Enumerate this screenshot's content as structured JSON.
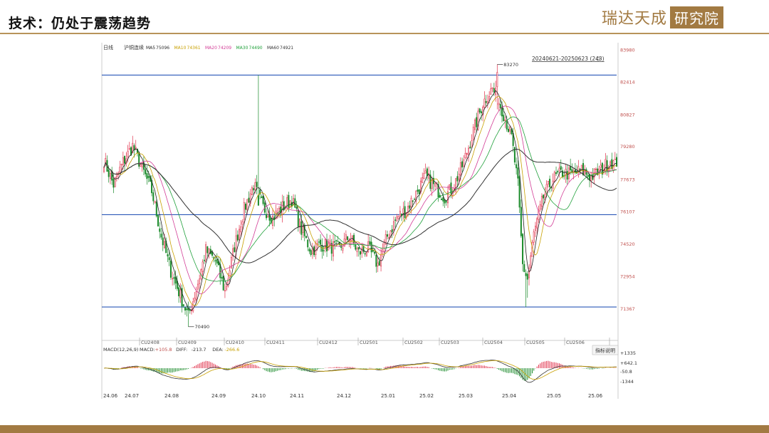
{
  "slide": {
    "title": "技术：仍处于震荡趋势",
    "brand_left": "瑞达天成",
    "brand_box": "研究院"
  },
  "colors": {
    "up": "#e0304a",
    "down": "#1a8a2a",
    "ma5": "#222222",
    "ma10": "#c8a000",
    "ma20": "#d23c96",
    "ma30": "#1fa03a",
    "ma60": "#333333",
    "hline": "#2b58b8"
  },
  "chart_data": {
    "type": "candlestick",
    "header": {
      "period": "日线",
      "symbol": "沪铜连续",
      "ma_values": [
        {
          "name": "MA5",
          "value": "75096"
        },
        {
          "name": "MA10",
          "value": "74361"
        },
        {
          "name": "MA20",
          "value": "74209"
        },
        {
          "name": "MA30",
          "value": "74490"
        },
        {
          "name": "MA60",
          "value": "74921"
        }
      ],
      "range": "20240621-20250623 (243)"
    },
    "ylim": [
      70100,
      83980
    ],
    "y_ticks": [
      83980,
      82414,
      80827,
      79280,
      77673,
      76107,
      74520,
      72954,
      71367
    ],
    "h_lines": [
      82750,
      75950,
      71450
    ],
    "annotations": [
      {
        "label": "83270",
        "value": 83270
      },
      {
        "label": "70490",
        "value": 70490
      }
    ],
    "contracts": [
      "CU2408",
      "CU2409",
      "CU2410",
      "CU2411",
      "CU2412",
      "CU2501",
      "CU2502",
      "CU2503",
      "CU2504",
      "CU2505",
      "CU2506"
    ],
    "x_labels": [
      "24.06",
      "24.07",
      "24.08",
      "24.09",
      "24.10",
      "24.11",
      "24.12",
      "25.01",
      "25.02",
      "25.03",
      "25.04",
      "25.05",
      "25.06"
    ],
    "anchors": [
      [
        0,
        78600
      ],
      [
        6,
        77400
      ],
      [
        12,
        78500
      ],
      [
        18,
        79300
      ],
      [
        24,
        78200
      ],
      [
        30,
        77100
      ],
      [
        36,
        74900
      ],
      [
        42,
        73200
      ],
      [
        48,
        72000
      ],
      [
        53,
        71000
      ],
      [
        58,
        72300
      ],
      [
        64,
        74200
      ],
      [
        70,
        73700
      ],
      [
        76,
        72200
      ],
      [
        82,
        74400
      ],
      [
        88,
        76200
      ],
      [
        94,
        77400
      ],
      [
        100,
        76300
      ],
      [
        106,
        75800
      ],
      [
        112,
        76300
      ],
      [
        118,
        76700
      ],
      [
        124,
        75200
      ],
      [
        130,
        74200
      ],
      [
        136,
        74500
      ],
      [
        142,
        74400
      ],
      [
        148,
        74300
      ],
      [
        154,
        74900
      ],
      [
        160,
        74100
      ],
      [
        166,
        74300
      ],
      [
        172,
        73500
      ],
      [
        178,
        74900
      ],
      [
        184,
        75800
      ],
      [
        190,
        76200
      ],
      [
        196,
        77000
      ],
      [
        202,
        77800
      ],
      [
        208,
        77300
      ],
      [
        214,
        76800
      ],
      [
        220,
        77400
      ],
      [
        226,
        78500
      ],
      [
        232,
        80000
      ],
      [
        238,
        81400
      ],
      [
        244,
        82100
      ],
      [
        250,
        81100
      ],
      [
        256,
        79700
      ],
      [
        260,
        77400
      ],
      [
        263,
        73500
      ],
      [
        266,
        72800
      ],
      [
        270,
        75000
      ],
      [
        276,
        76800
      ],
      [
        282,
        77700
      ],
      [
        288,
        78000
      ],
      [
        294,
        77900
      ],
      [
        300,
        78100
      ],
      [
        306,
        77800
      ],
      [
        312,
        78100
      ],
      [
        318,
        78600
      ],
      [
        322,
        78300
      ]
    ],
    "macd": {
      "label": "MACD(12,26,9)",
      "values": [
        {
          "name": "MACD",
          "value": "+105.8"
        },
        {
          "name": "DIFF",
          "value": "-213.7"
        },
        {
          "name": "DEA",
          "value": "-266.6"
        }
      ],
      "button": "指标说明",
      "y_ticks": [
        "+1335",
        "+642.1",
        "-50.8",
        "-1344"
      ]
    }
  }
}
